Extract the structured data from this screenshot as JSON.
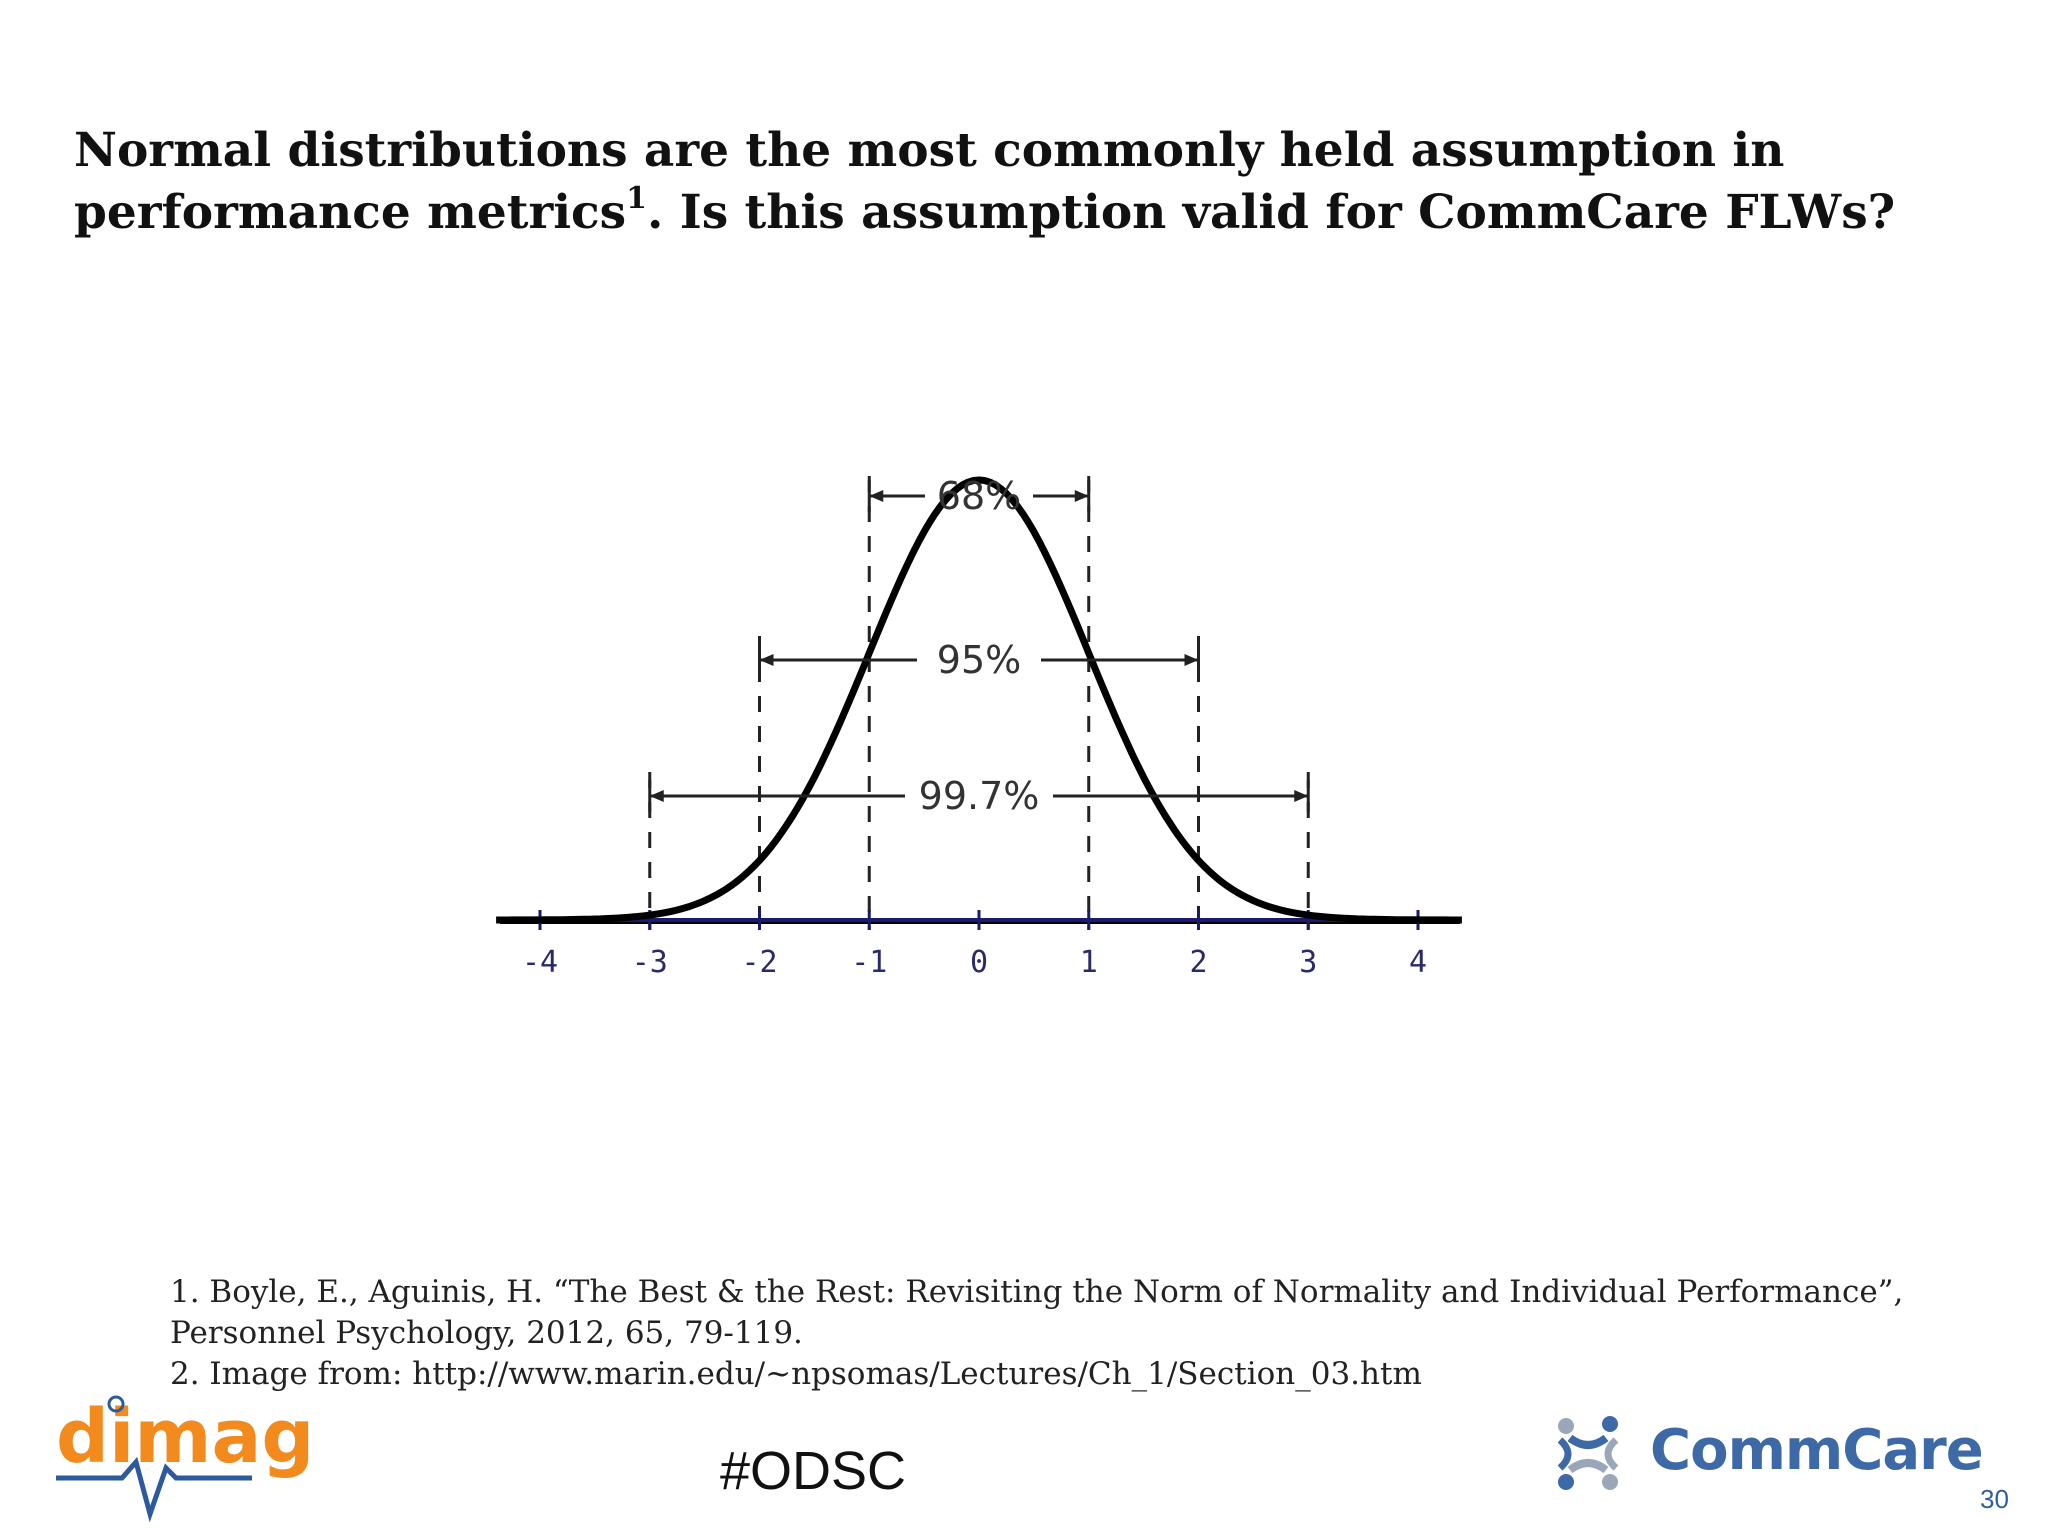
{
  "slide": {
    "title_main": "Normal distributions are the most commonly held assumption in performance metrics",
    "title_sup": "1",
    "title_tail": ". Is this assumption valid for CommCare FLWs?",
    "footnotes": [
      "1. Boyle, E., Aguinis, H. “The Best & the Rest: Revisiting the Norm of Normality and Individual Performance”, Personnel Psychology, 2012, 65, 79-119.",
      "2. Image from: http://www.marin.edu/~npsomas/Lectures/Ch_1/Section_03.htm"
    ],
    "hashtag": "#ODSC",
    "page_number": "30",
    "logo_left": "dimagi",
    "logo_right": "CommCare"
  },
  "chart_data": {
    "type": "line",
    "x": [
      -4,
      -3.5,
      -3,
      -2.5,
      -2,
      -1.5,
      -1,
      -0.5,
      0,
      0.5,
      1,
      1.5,
      2,
      2.5,
      3,
      3.5,
      4
    ],
    "y": [
      0.0001,
      0.0009,
      0.0044,
      0.0175,
      0.054,
      0.1295,
      0.242,
      0.3521,
      0.3989,
      0.3521,
      0.242,
      0.1295,
      0.054,
      0.0175,
      0.0044,
      0.0009,
      0.0001
    ],
    "x_ticks": [
      "-4",
      "-3",
      "-2",
      "-1",
      "0",
      "1",
      "2",
      "3",
      "4"
    ],
    "xlim": [
      -4,
      4
    ],
    "intervals": [
      {
        "label": "68%",
        "from": -1,
        "to": 1
      },
      {
        "label": "95%",
        "from": -2,
        "to": 2
      },
      {
        "label": "99.7%",
        "from": -3,
        "to": 3
      }
    ],
    "dashed_lines_at": [
      -3,
      -2,
      -1,
      1,
      2,
      3
    ],
    "grid": false,
    "colors": {
      "curve": "#000000",
      "axis": "#1a1a6e",
      "text": "#333333"
    }
  },
  "colors": {
    "dimagi_orange": "#f28a1e",
    "dimagi_blue": "#2d5a9c",
    "commcare_blue": "#3d6aa6",
    "page_number": "#2e5f9e"
  }
}
